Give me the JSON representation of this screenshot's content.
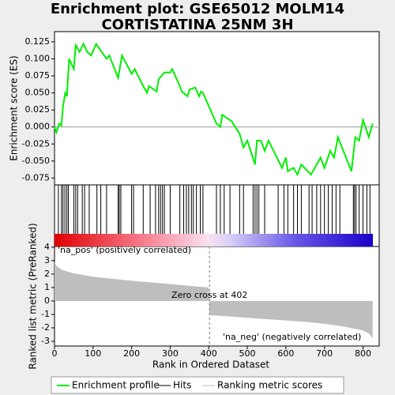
{
  "chart_data": [
    {
      "type": "line",
      "title": "Enrichment plot: GSE65012 MOLM14",
      "subtitle": "CORTISTATINA 25NM 3H",
      "ylabel": "Enrichment score (ES)",
      "xlim": [
        0,
        842
      ],
      "ylim": [
        -0.085,
        0.14
      ],
      "yticks": [
        0.125,
        {
          "value": 0.1,
          "label": "0.100"
        },
        0.075,
        {
          "value": 0.05,
          "label": "0.050"
        },
        0.025,
        {
          "value": 0,
          "label": "0.000"
        },
        -0.025,
        {
          "value": -0.05,
          "label": "-0.050"
        },
        -0.075
      ],
      "x": [
        0,
        5,
        12,
        18,
        22,
        28,
        32,
        38,
        50,
        55,
        65,
        75,
        85,
        95,
        108,
        120,
        135,
        142,
        165,
        175,
        200,
        208,
        230,
        240,
        245,
        265,
        270,
        285,
        300,
        305,
        325,
        330,
        345,
        350,
        365,
        375,
        380,
        385,
        420,
        430,
        435,
        460,
        480,
        490,
        500,
        520,
        525,
        535,
        545,
        555,
        590,
        600,
        605,
        620,
        630,
        640,
        665,
        690,
        700,
        715,
        725,
        735,
        770,
        780,
        790,
        800,
        815,
        825
      ],
      "series": [
        {
          "name": "Enrichment profile",
          "color": "#00ee00",
          "values": [
            0,
            -0.008,
            0.005,
            0.002,
            0.03,
            0.05,
            0.045,
            0.1,
            0.085,
            0.12,
            0.11,
            0.122,
            0.11,
            0.105,
            0.122,
            0.112,
            0.1,
            0.105,
            0.072,
            0.105,
            0.078,
            0.085,
            0.06,
            0.05,
            0.06,
            0.052,
            0.07,
            0.08,
            0.08,
            0.085,
            0.06,
            0.052,
            0.045,
            0.055,
            0.058,
            0.045,
            0.052,
            0.05,
            0.005,
            0.0,
            0.018,
            0.008,
            -0.01,
            -0.03,
            -0.02,
            -0.055,
            -0.02,
            -0.02,
            -0.035,
            -0.02,
            -0.06,
            -0.045,
            -0.065,
            -0.06,
            -0.07,
            -0.055,
            -0.07,
            -0.045,
            -0.06,
            -0.035,
            -0.045,
            -0.015,
            -0.065,
            -0.015,
            -0.02,
            0.01,
            -0.015,
            0.005
          ]
        }
      ]
    },
    {
      "type": "hits",
      "xlim": [
        0,
        842
      ],
      "series": [
        {
          "name": "Hits",
          "color": "#000000",
          "x": [
            10,
            18,
            22,
            27,
            32,
            36,
            50,
            55,
            60,
            72,
            78,
            90,
            110,
            120,
            135,
            165,
            168,
            172,
            200,
            205,
            230,
            248,
            262,
            270,
            275,
            280,
            285,
            300,
            325,
            335,
            342,
            348,
            355,
            360,
            368,
            378,
            385,
            420,
            430,
            440,
            455,
            480,
            490,
            515,
            520,
            525,
            530,
            545,
            580,
            595,
            605,
            620,
            630,
            640,
            660,
            668,
            680,
            690,
            700,
            710,
            720,
            730,
            740,
            775,
            778,
            782,
            790,
            800,
            810,
            818
          ]
        }
      ]
    },
    {
      "type": "area",
      "ylabel": "Ranked list metric (PreRanked)",
      "xlabel": "Rank in Ordered Dataset",
      "xlim": [
        0,
        842
      ],
      "xticks": [
        0,
        100,
        200,
        300,
        400,
        500,
        600,
        700,
        800
      ],
      "ylim": [
        -3.35,
        4.05
      ],
      "yticks": [
        4,
        3,
        2,
        1,
        0,
        -1,
        -2,
        -3
      ],
      "zero_cross": 402,
      "annotations": [
        "'na_pos' (positively correlated)",
        "Zero cross at 402",
        "'na_neg' (negatively correlated)"
      ],
      "x": [
        0,
        5,
        20,
        50,
        100,
        200,
        300,
        400,
        402,
        450,
        550,
        650,
        700,
        750,
        800,
        815,
        825
      ],
      "series": [
        {
          "name": "Ranking metric scores",
          "color": "#bebebe",
          "values": [
            2.9,
            2.6,
            2.3,
            2.05,
            1.8,
            1.5,
            1.25,
            1.0,
            -1.05,
            -1.15,
            -1.35,
            -1.55,
            -1.7,
            -1.9,
            -2.2,
            -2.4,
            -2.8
          ]
        }
      ]
    }
  ]
}
